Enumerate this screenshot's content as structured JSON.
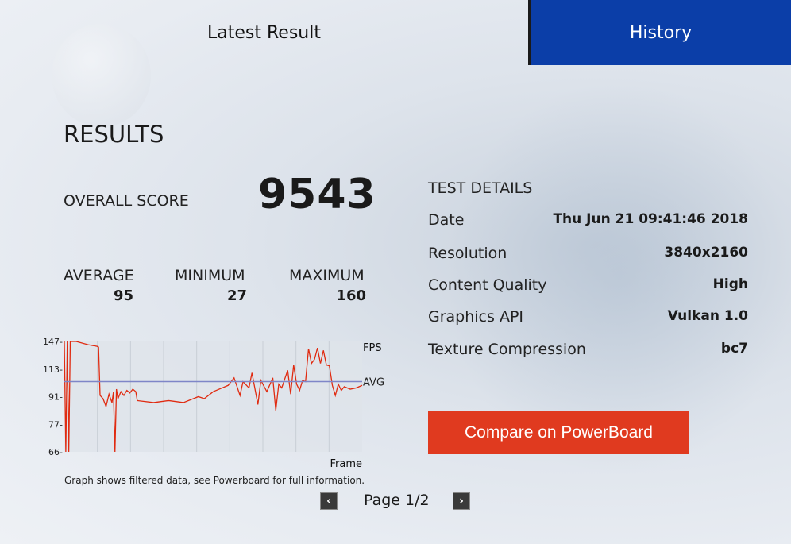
{
  "tabs": {
    "latest": "Latest Result",
    "history": "History",
    "active": "history"
  },
  "results": {
    "title": "RESULTS",
    "overall_label": "OVERALL SCORE",
    "overall_score": "9543",
    "average_label": "AVERAGE",
    "average": "95",
    "minimum_label": "MINIMUM",
    "minimum": "27",
    "maximum_label": "MAXIMUM",
    "maximum": "160"
  },
  "details": {
    "title": "TEST DETAILS",
    "rows": [
      {
        "label": "Date",
        "value": "Thu Jun 21 09:41:46 2018"
      },
      {
        "label": "Resolution",
        "value": "3840x2160"
      },
      {
        "label": "Content Quality",
        "value": "High"
      },
      {
        "label": "Graphics API",
        "value": "Vulkan 1.0"
      },
      {
        "label": "Texture Compression",
        "value": "bc7"
      }
    ]
  },
  "compare_button": "Compare on PowerBoard",
  "pagination": {
    "label": "Page 1/2",
    "prev_icon": "chevron-left-icon",
    "next_icon": "chevron-right-icon"
  },
  "colors": {
    "history_tab": "#0b3ea8",
    "compare_button": "#e03a1f",
    "series": "#e02a10",
    "avg_line": "#7f86c8"
  },
  "chart_data": {
    "type": "line",
    "ylabel": "FPS",
    "xlabel": "Frame",
    "y_ticks": [
      147,
      113,
      91,
      77,
      66
    ],
    "avg_label": "AVG",
    "avg_value": 103,
    "note": "Graph shows filtered data, see Powerboard for full information.",
    "grid": true,
    "x": [
      0,
      0.5,
      1,
      1.5,
      2,
      4,
      8,
      11,
      11.5,
      12,
      13,
      14,
      15,
      16,
      16.5,
      17,
      17.5,
      18,
      19,
      20,
      21,
      22,
      23,
      24,
      24.5,
      30,
      35,
      40,
      45,
      47,
      50,
      53,
      55,
      57,
      59,
      60,
      62,
      63,
      65,
      66,
      68,
      70,
      71,
      72,
      73,
      75,
      76,
      77,
      78,
      79,
      80,
      81,
      82,
      83,
      84,
      85,
      86,
      87,
      88,
      89,
      90,
      91,
      92,
      93,
      94,
      96,
      98,
      100
    ],
    "y": [
      147,
      66,
      147,
      66,
      147,
      147,
      143,
      141,
      140,
      92,
      90,
      86,
      93,
      88,
      95,
      66,
      97,
      90,
      95,
      92,
      96,
      94,
      97,
      95,
      89,
      88,
      89,
      88,
      91,
      90,
      95,
      98,
      100,
      106,
      92,
      103,
      98,
      110,
      87,
      104,
      95,
      106,
      84,
      101,
      98,
      112,
      93,
      118,
      101,
      96,
      104,
      103,
      138,
      120,
      125,
      139,
      120,
      136,
      118,
      117,
      100,
      92,
      101,
      96,
      99,
      97,
      98,
      100
    ]
  }
}
